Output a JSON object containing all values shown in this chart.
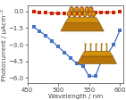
{
  "blue_x": [
    460,
    470,
    480,
    490,
    500,
    510,
    520,
    530,
    540,
    550,
    560,
    570,
    580,
    590,
    600
  ],
  "blue_y": [
    -1.4,
    -1.8,
    -2.2,
    -2.7,
    -3.2,
    -3.7,
    -4.2,
    -4.7,
    -4.9,
    -5.85,
    -5.85,
    -4.5,
    -3.8,
    -3.0,
    -1.7
  ],
  "red_x": [
    460,
    470,
    480,
    490,
    500,
    510,
    520,
    530,
    540,
    550,
    560,
    570,
    580,
    590,
    600
  ],
  "red_y": [
    -0.05,
    -0.1,
    -0.12,
    -0.15,
    -0.18,
    -0.18,
    -0.18,
    -0.15,
    -0.15,
    -0.12,
    -0.1,
    -0.08,
    -0.08,
    -0.08,
    -0.06
  ],
  "xlim": [
    450,
    605
  ],
  "ylim": [
    -6.5,
    0.5
  ],
  "yticks": [
    -6.0,
    -4.5,
    -3.0,
    -1.5,
    0.0
  ],
  "xticks": [
    450,
    500,
    550,
    600
  ],
  "xlabel": "Wavelength / nm",
  "ylabel": "Photocurrent / μAcm⁻²",
  "blue_color": "#4472C4",
  "red_color": "#CC2200",
  "bg_color": "#FFFFFF",
  "axis_color": "#444444",
  "tick_fontsize": 5.0,
  "label_fontsize": 5.2,
  "fig_width": 1.38,
  "fig_height": 1.13
}
